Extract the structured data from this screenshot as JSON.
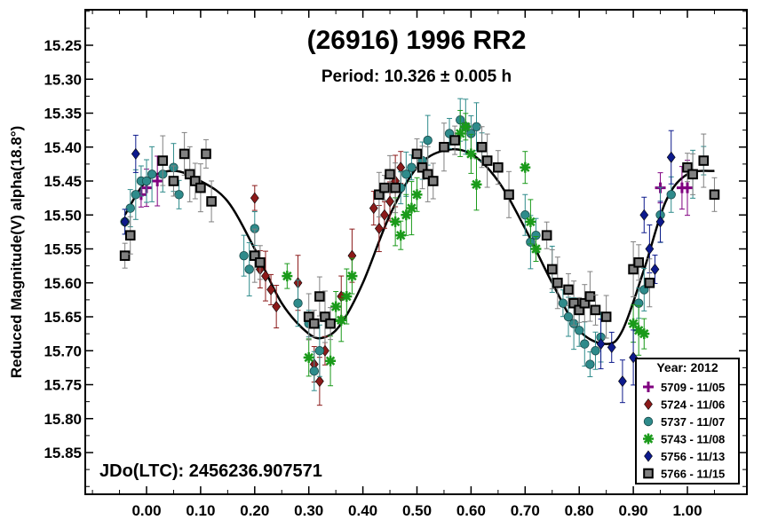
{
  "chart_data": {
    "type": "scatter",
    "title": "(26916) 1996 RR2",
    "subtitle": "Period: 10.326 ± 0.005 h",
    "ylabel": "Reduced Magnitude(V) alpha(18.8°)",
    "xlabel": "",
    "annotation": "JDo(LTC): 2456236.907571",
    "xlim": [
      -0.07,
      1.07
    ],
    "ylim": [
      15.9,
      15.2
    ],
    "x_ticks": [
      "0.00",
      "0.10",
      "0.20",
      "0.30",
      "0.40",
      "0.50",
      "0.60",
      "0.70",
      "0.80",
      "0.90",
      "1.00"
    ],
    "y_ticks": [
      "15.25",
      "15.30",
      "15.35",
      "15.40",
      "15.45",
      "15.50",
      "15.55",
      "15.60",
      "15.65",
      "15.70",
      "15.75",
      "15.80",
      "15.85"
    ],
    "legend": {
      "title": "Year: 2012",
      "position": "bottom-right"
    },
    "fit_curve": {
      "x": [
        -0.04,
        0.0,
        0.05,
        0.1,
        0.15,
        0.2,
        0.25,
        0.3,
        0.33,
        0.36,
        0.4,
        0.45,
        0.5,
        0.55,
        0.6,
        0.65,
        0.7,
        0.75,
        0.8,
        0.85,
        0.88,
        0.92,
        0.96,
        1.0,
        1.05
      ],
      "y": [
        15.5,
        15.45,
        15.435,
        15.45,
        15.48,
        15.55,
        15.63,
        15.675,
        15.68,
        15.66,
        15.6,
        15.5,
        15.43,
        15.405,
        15.41,
        15.45,
        15.52,
        15.6,
        15.67,
        15.69,
        15.67,
        15.58,
        15.48,
        15.44,
        15.435
      ]
    },
    "series": [
      {
        "name": "5709 - 11/05",
        "color": "#800080",
        "marker": "plus",
        "x": [
          -0.01,
          0.0,
          0.02,
          0.95,
          0.99,
          1.0
        ],
        "y": [
          15.47,
          15.46,
          15.45,
          15.46,
          15.46,
          15.46
        ]
      },
      {
        "name": "5724 - 11/06",
        "color": "#8b1a1a",
        "marker": "diamond",
        "x": [
          0.2,
          0.21,
          0.22,
          0.23,
          0.24,
          0.28,
          0.31,
          0.32,
          0.33,
          0.36,
          0.38,
          0.42,
          0.43,
          0.44,
          0.45,
          0.46,
          0.47
        ],
        "y": [
          15.475,
          15.58,
          15.59,
          15.61,
          15.635,
          15.6,
          15.72,
          15.745,
          15.7,
          15.62,
          15.56,
          15.49,
          15.52,
          15.5,
          15.48,
          15.45,
          15.43
        ]
      },
      {
        "name": "5737 - 11/07",
        "color": "#2e8b8b",
        "marker": "circle",
        "x": [
          -0.04,
          -0.03,
          -0.02,
          -0.01,
          0.0,
          0.01,
          0.03,
          0.05,
          0.06,
          0.18,
          0.19,
          0.2,
          0.28,
          0.3,
          0.31,
          0.32,
          0.47,
          0.48,
          0.49,
          0.51,
          0.52,
          0.56,
          0.58,
          0.59,
          0.6,
          0.61,
          0.62,
          0.7,
          0.71,
          0.72,
          0.75,
          0.77,
          0.78,
          0.79,
          0.8,
          0.81,
          0.82,
          0.83,
          0.84,
          0.91,
          0.92,
          0.95,
          0.97,
          1.01,
          1.03
        ],
        "y": [
          15.51,
          15.49,
          15.47,
          15.45,
          15.45,
          15.44,
          15.44,
          15.43,
          15.47,
          15.56,
          15.58,
          15.52,
          15.63,
          15.66,
          15.73,
          15.7,
          15.46,
          15.44,
          15.43,
          15.42,
          15.39,
          15.38,
          15.36,
          15.37,
          15.38,
          15.37,
          15.4,
          15.5,
          15.54,
          15.53,
          15.58,
          15.63,
          15.65,
          15.66,
          15.67,
          15.69,
          15.72,
          15.7,
          15.68,
          15.63,
          15.61,
          15.5,
          15.47,
          15.44,
          15.42
        ]
      },
      {
        "name": "5743 - 11/08",
        "color": "#1a9a1a",
        "marker": "asterisk",
        "x": [
          0.26,
          0.3,
          0.34,
          0.35,
          0.36,
          0.37,
          0.38,
          0.46,
          0.47,
          0.48,
          0.49,
          0.5,
          0.58,
          0.59,
          0.6,
          0.61,
          0.7,
          0.71,
          0.72,
          0.9,
          0.91,
          0.92
        ],
        "y": [
          15.59,
          15.71,
          15.715,
          15.635,
          15.655,
          15.62,
          15.59,
          15.51,
          15.53,
          15.5,
          15.49,
          15.47,
          15.38,
          15.37,
          15.41,
          15.455,
          15.43,
          15.51,
          15.55,
          15.66,
          15.67,
          15.675
        ]
      },
      {
        "name": "5756 - 11/13",
        "color": "#0d1a8c",
        "marker": "diamond",
        "x": [
          -0.04,
          -0.02,
          0.84,
          0.86,
          0.88,
          0.9,
          0.92,
          0.93,
          0.94,
          0.95,
          0.97
        ],
        "y": [
          15.51,
          15.41,
          15.69,
          15.695,
          15.745,
          15.71,
          15.5,
          15.55,
          15.58,
          15.51,
          15.415
        ]
      },
      {
        "name": "5766 - 11/15",
        "color": "#808080",
        "marker": "square",
        "x": [
          -0.04,
          -0.03,
          0.03,
          0.05,
          0.07,
          0.08,
          0.09,
          0.1,
          0.11,
          0.12,
          0.2,
          0.21,
          0.3,
          0.31,
          0.32,
          0.33,
          0.34,
          0.43,
          0.44,
          0.45,
          0.46,
          0.5,
          0.51,
          0.52,
          0.53,
          0.55,
          0.57,
          0.62,
          0.63,
          0.65,
          0.67,
          0.74,
          0.75,
          0.76,
          0.78,
          0.79,
          0.8,
          0.81,
          0.82,
          0.83,
          0.85,
          0.9,
          0.91,
          0.93,
          1.0,
          1.01,
          1.03,
          1.05
        ],
        "y": [
          15.56,
          15.53,
          15.42,
          15.45,
          15.41,
          15.44,
          15.45,
          15.46,
          15.41,
          15.48,
          15.56,
          15.57,
          15.65,
          15.66,
          15.62,
          15.65,
          15.66,
          15.47,
          15.46,
          15.44,
          15.46,
          15.41,
          15.43,
          15.44,
          15.45,
          15.4,
          15.39,
          15.4,
          15.42,
          15.43,
          15.47,
          15.53,
          15.58,
          15.6,
          15.61,
          15.63,
          15.64,
          15.63,
          15.62,
          15.64,
          15.65,
          15.58,
          15.57,
          15.6,
          15.43,
          15.44,
          15.42,
          15.47
        ]
      }
    ]
  }
}
